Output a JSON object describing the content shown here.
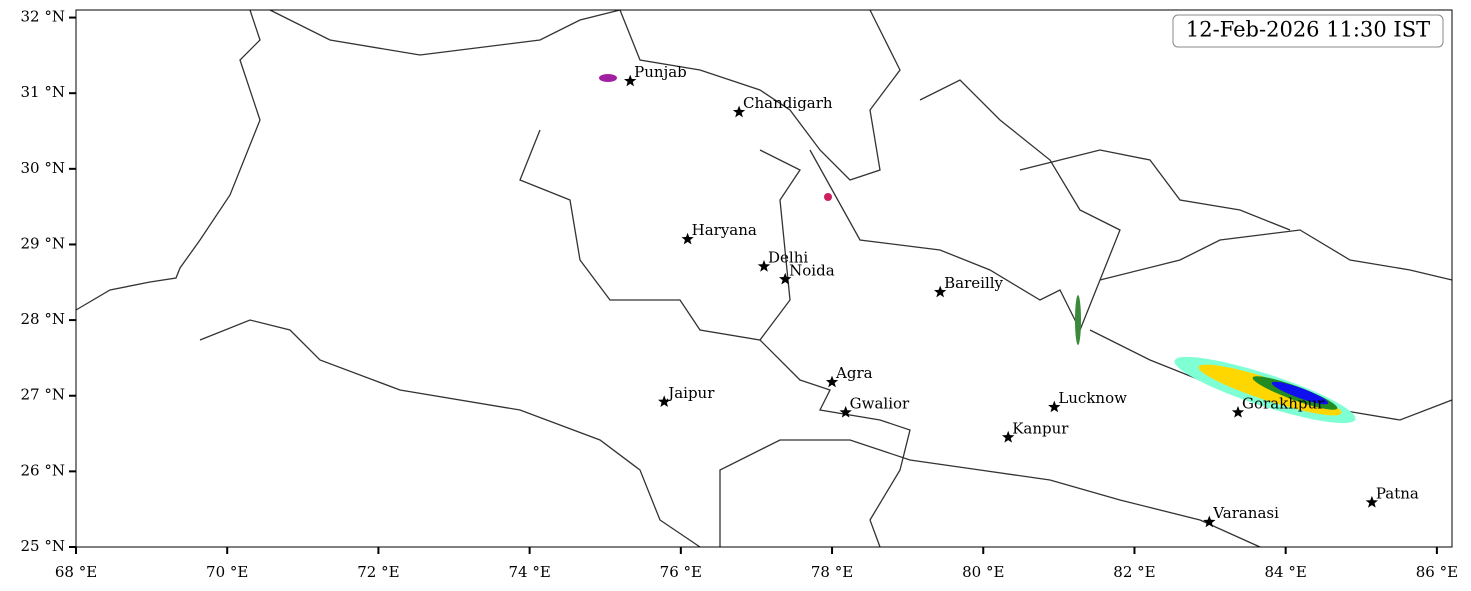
{
  "map": {
    "title": "12-Feb-2026 11:30 IST",
    "xlim": [
      68,
      86.2
    ],
    "ylim": [
      25,
      32.1
    ],
    "xticks": [
      {
        "value": 68,
        "label": "68 °E"
      },
      {
        "value": 70,
        "label": "70 °E"
      },
      {
        "value": 72,
        "label": "72 °E"
      },
      {
        "value": 74,
        "label": "74 °E"
      },
      {
        "value": 76,
        "label": "76 °E"
      },
      {
        "value": 78,
        "label": "78 °E"
      },
      {
        "value": 80,
        "label": "80 °E"
      },
      {
        "value": 82,
        "label": "82 °E"
      },
      {
        "value": 84,
        "label": "84 °E"
      },
      {
        "value": 86,
        "label": "86 °E"
      }
    ],
    "yticks": [
      {
        "value": 25,
        "label": "25 °N"
      },
      {
        "value": 26,
        "label": "26 °N"
      },
      {
        "value": 27,
        "label": "27 °N"
      },
      {
        "value": 28,
        "label": "28 °N"
      },
      {
        "value": 29,
        "label": "29 °N"
      },
      {
        "value": 30,
        "label": "30 °N"
      },
      {
        "value": 31,
        "label": "31 °N"
      },
      {
        "value": 32,
        "label": "32 °N"
      }
    ],
    "cities": [
      {
        "name": "Punjab",
        "lon": 75.33,
        "lat": 31.16
      },
      {
        "name": "Chandigarh",
        "lon": 76.77,
        "lat": 30.75
      },
      {
        "name": "Haryana",
        "lon": 76.09,
        "lat": 29.07
      },
      {
        "name": "Delhi",
        "lon": 77.1,
        "lat": 28.71
      },
      {
        "name": "Noida",
        "lon": 77.38,
        "lat": 28.54
      },
      {
        "name": "Bareilly",
        "lon": 79.43,
        "lat": 28.37
      },
      {
        "name": "Agra",
        "lon": 78.0,
        "lat": 27.18
      },
      {
        "name": "Jaipur",
        "lon": 75.78,
        "lat": 26.92
      },
      {
        "name": "Gwalior",
        "lon": 78.18,
        "lat": 26.78
      },
      {
        "name": "Lucknow",
        "lon": 80.94,
        "lat": 26.85
      },
      {
        "name": "Kanpur",
        "lon": 80.33,
        "lat": 26.45
      },
      {
        "name": "Gorakhpur",
        "lon": 83.37,
        "lat": 26.78
      },
      {
        "name": "Varanasi",
        "lon": 82.99,
        "lat": 25.33
      },
      {
        "name": "Patna",
        "lon": 85.14,
        "lat": 25.59
      }
    ]
  }
}
